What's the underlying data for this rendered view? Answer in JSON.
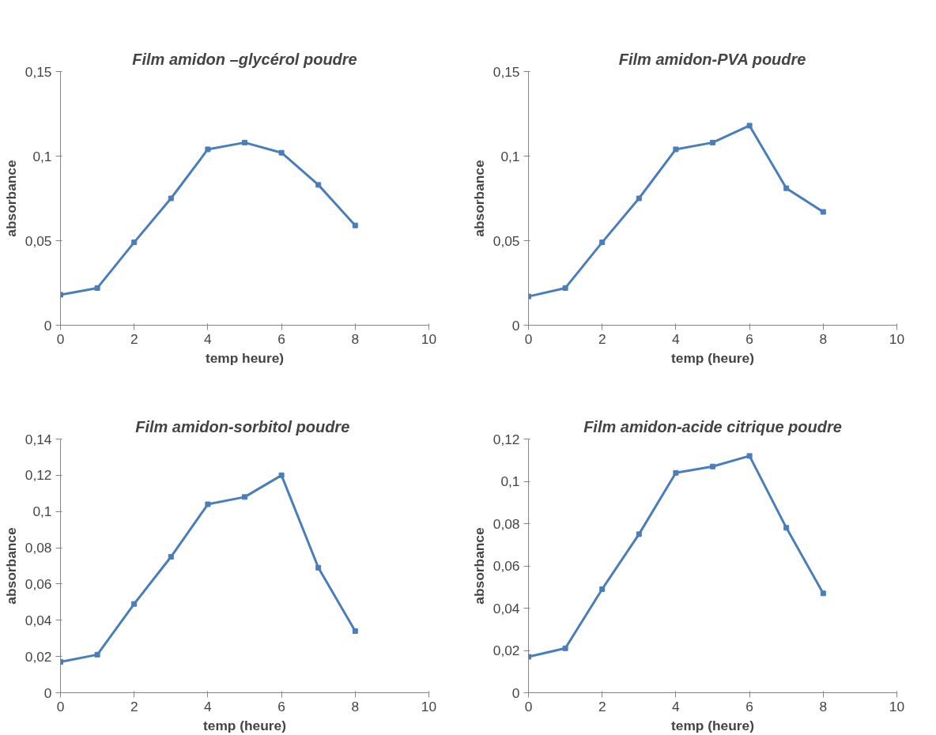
{
  "chart_data": [
    {
      "type": "line",
      "title": "Film amidon –glycérol poudre",
      "xlabel": "temp heure)",
      "ylabel": "absorbance",
      "x": [
        0,
        1,
        2,
        3,
        4,
        5,
        6,
        7,
        8
      ],
      "marker": "square",
      "line_style": "solid",
      "grid": false,
      "xlim": [
        0,
        10
      ],
      "xticks": [
        0,
        2,
        4,
        6,
        8,
        10
      ],
      "ylim": [
        0,
        0.15
      ],
      "yticks": [
        0,
        {
          "value": 0.05,
          "label": "0,05"
        },
        {
          "value": 0.1,
          "label": "0,1"
        },
        {
          "value": 0.15,
          "label": "0,15"
        }
      ],
      "series": [
        {
          "color": "#4a7ebb",
          "values": [
            0.018,
            0.022,
            0.049,
            0.075,
            0.104,
            0.108,
            0.102,
            0.083,
            0.059
          ]
        }
      ]
    },
    {
      "type": "line",
      "title": "Film amidon-PVA poudre",
      "xlabel": "temp (heure)",
      "ylabel": "absorbance",
      "x": [
        0,
        1,
        2,
        3,
        4,
        5,
        6,
        7,
        8
      ],
      "marker": "square",
      "line_style": "solid",
      "grid": false,
      "xlim": [
        0,
        10
      ],
      "xticks": [
        0,
        2,
        4,
        6,
        8,
        10
      ],
      "ylim": [
        0,
        0.15
      ],
      "yticks": [
        0,
        {
          "value": 0.05,
          "label": "0,05"
        },
        {
          "value": 0.1,
          "label": "0,1"
        },
        {
          "value": 0.15,
          "label": "0,15"
        }
      ],
      "series": [
        {
          "color": "#4a7ebb",
          "values": [
            0.017,
            0.022,
            0.049,
            0.075,
            0.104,
            0.108,
            0.118,
            0.081,
            0.067
          ]
        }
      ]
    },
    {
      "type": "line",
      "title": "Film amidon-sorbitol  poudre",
      "xlabel": "temp (heure)",
      "ylabel": "absorbance",
      "x": [
        0,
        1,
        2,
        3,
        4,
        5,
        6,
        7,
        8
      ],
      "marker": "square",
      "line_style": "solid",
      "grid": false,
      "xlim": [
        0,
        10
      ],
      "xticks": [
        0,
        2,
        4,
        6,
        8,
        10
      ],
      "ylim": [
        0,
        0.14
      ],
      "yticks": [
        0,
        {
          "value": 0.02,
          "label": "0,02"
        },
        {
          "value": 0.04,
          "label": "0,04"
        },
        {
          "value": 0.06,
          "label": "0,06"
        },
        {
          "value": 0.08,
          "label": "0,08"
        },
        {
          "value": 0.1,
          "label": "0,1"
        },
        {
          "value": 0.12,
          "label": "0,12"
        },
        {
          "value": 0.14,
          "label": "0,14"
        }
      ],
      "series": [
        {
          "color": "#4a7ebb",
          "values": [
            0.017,
            0.021,
            0.049,
            0.075,
            0.104,
            0.108,
            0.12,
            0.069,
            0.034
          ]
        }
      ]
    },
    {
      "type": "line",
      "title": "Film amidon-acide citrique poudre",
      "xlabel": "temp (heure)",
      "ylabel": "absorbance",
      "x": [
        0,
        1,
        2,
        3,
        4,
        5,
        6,
        7,
        8
      ],
      "marker": "square",
      "line_style": "solid",
      "grid": false,
      "xlim": [
        0,
        10
      ],
      "xticks": [
        0,
        2,
        4,
        6,
        8,
        10
      ],
      "ylim": [
        0,
        0.12
      ],
      "yticks": [
        0,
        {
          "value": 0.02,
          "label": "0,02"
        },
        {
          "value": 0.04,
          "label": "0,04"
        },
        {
          "value": 0.06,
          "label": "0,06"
        },
        {
          "value": 0.08,
          "label": "0,08"
        },
        {
          "value": 0.1,
          "label": "0,1"
        },
        {
          "value": 0.12,
          "label": "0,12"
        }
      ],
      "series": [
        {
          "color": "#4a7ebb",
          "values": [
            0.017,
            0.021,
            0.049,
            0.075,
            0.104,
            0.107,
            0.112,
            0.078,
            0.047
          ]
        }
      ]
    }
  ]
}
